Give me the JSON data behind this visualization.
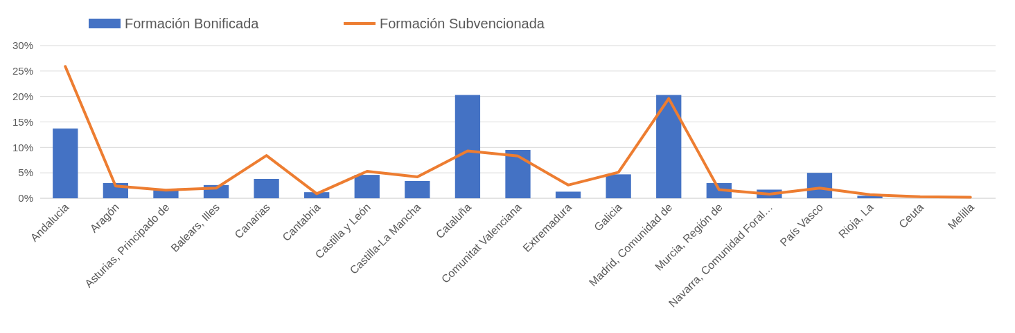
{
  "chart_data": {
    "type": "bar",
    "categories": [
      "Andalucia",
      "Aragón",
      "Asturias, Principado de",
      "Balears, Illes",
      "Canarias",
      "Cantabria",
      "Castilla y León",
      "Castilla-La Mancha",
      "Cataluña",
      "Comunitat Valenciana",
      "Extremadura",
      "Galicia",
      "Madrid, Comunidad de",
      "Murcia, Región de",
      "Navarra, Comunidad Foral…",
      "País Vasco",
      "Rioja, La",
      "Ceuta",
      "Melilla"
    ],
    "series": [
      {
        "name": "Formación Bonificada",
        "color": "#4472c4",
        "values": [
          13.7,
          3.0,
          1.6,
          2.6,
          3.8,
          1.2,
          4.6,
          3.4,
          20.3,
          9.5,
          1.3,
          4.7,
          20.3,
          3.0,
          1.7,
          5.0,
          0.5,
          null,
          null
        ]
      },
      {
        "name": "Formación Subvencionada",
        "type": "line",
        "color": "#ed7d31",
        "values": [
          25.9,
          2.4,
          1.6,
          2.0,
          8.4,
          0.9,
          5.3,
          4.2,
          9.3,
          8.3,
          2.6,
          5.1,
          19.6,
          1.7,
          0.8,
          2.0,
          0.7,
          0.3,
          0.2
        ]
      }
    ],
    "ylim": [
      0,
      30
    ],
    "yticks": [
      {
        "value": 0,
        "label": "0%"
      },
      {
        "value": 5,
        "label": "5%"
      },
      {
        "value": 10,
        "label": "10%"
      },
      {
        "value": 15,
        "label": "15%"
      },
      {
        "value": 20,
        "label": "20%"
      },
      {
        "value": 25,
        "label": "25%"
      },
      {
        "value": 30,
        "label": "30%"
      }
    ],
    "grid": "y",
    "legend": "top left",
    "marker": "none"
  }
}
